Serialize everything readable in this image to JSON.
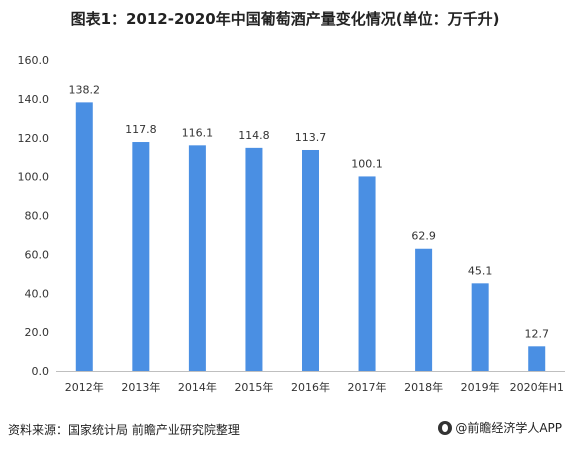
{
  "chart_data": {
    "type": "bar",
    "title": "图表1：2012-2020年中国葡萄酒产量变化情况(单位：万千升)",
    "categories": [
      "2012年",
      "2013年",
      "2014年",
      "2015年",
      "2016年",
      "2017年",
      "2018年",
      "2019年",
      "2020年H1"
    ],
    "values": [
      138.2,
      117.8,
      116.1,
      114.8,
      113.7,
      100.1,
      62.9,
      45.1,
      12.7
    ],
    "value_labels": [
      "138.2",
      "117.8",
      "116.1",
      "114.8",
      "113.7",
      "100.1",
      "62.9",
      "45.1",
      "12.7"
    ],
    "yticks": [
      "0.0",
      "20.0",
      "40.0",
      "60.0",
      "80.0",
      "100.0",
      "120.0",
      "140.0",
      "160.0"
    ],
    "ylim": [
      0,
      160
    ],
    "grid": false,
    "bar_color": "#4a8fe3"
  },
  "footer": {
    "source": "资料来源：国家统计局 前瞻产业研究院整理",
    "brand": "@前瞻经济学人APP"
  }
}
